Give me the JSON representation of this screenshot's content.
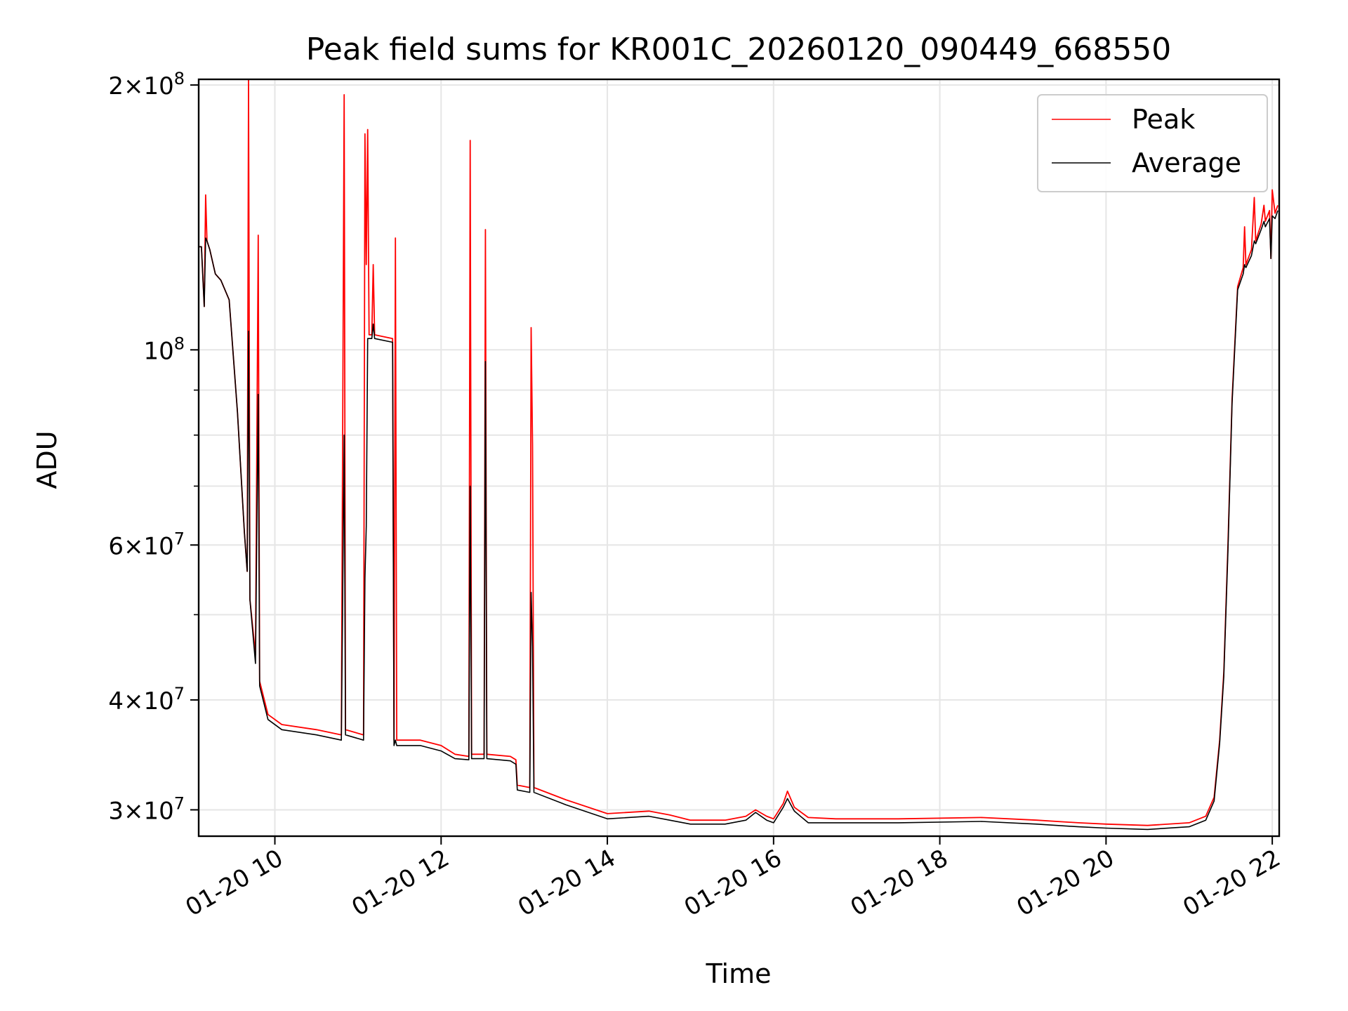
{
  "chart_data": {
    "type": "line",
    "title": "Peak field sums for KR001C_20260120_090449_668550",
    "xlabel": "Time",
    "ylabel": "ADU",
    "yscale": "log",
    "ylim": [
      28000000,
      203000000
    ],
    "xlim": [
      "2026-01-20 09:05",
      "2026-01-20 22:05"
    ],
    "grid": true,
    "legend_position": "top-right",
    "x_ticks": [
      {
        "value": "2026-01-20 10:00",
        "label": "01-20 10"
      },
      {
        "value": "2026-01-20 12:00",
        "label": "01-20 12"
      },
      {
        "value": "2026-01-20 14:00",
        "label": "01-20 14"
      },
      {
        "value": "2026-01-20 16:00",
        "label": "01-20 16"
      },
      {
        "value": "2026-01-20 18:00",
        "label": "01-20 18"
      },
      {
        "value": "2026-01-20 20:00",
        "label": "01-20 20"
      },
      {
        "value": "2026-01-20 22:00",
        "label": "01-20 22"
      }
    ],
    "y_ticks": [
      {
        "value": 30000000,
        "mantissa": "3",
        "exponent": "7"
      },
      {
        "value": 40000000,
        "mantissa": "4",
        "exponent": "7"
      },
      {
        "value": 60000000,
        "mantissa": "6",
        "exponent": "7"
      },
      {
        "value": 100000000,
        "mantissa": "",
        "exponent": "8"
      },
      {
        "value": 200000000,
        "mantissa": "2",
        "exponent": "8"
      }
    ],
    "series": [
      {
        "name": "Peak",
        "color": "#ff0000",
        "points": [
          [
            "2026-01-20 09:05",
            131000000
          ],
          [
            "2026-01-20 09:07",
            131000000
          ],
          [
            "2026-01-20 09:09",
            112000000
          ],
          [
            "2026-01-20 09:10",
            150000000
          ],
          [
            "2026-01-20 09:11",
            133000000
          ],
          [
            "2026-01-20 09:13",
            130000000
          ],
          [
            "2026-01-20 09:17",
            122000000
          ],
          [
            "2026-01-20 09:21",
            120000000
          ],
          [
            "2026-01-20 09:27",
            114000000
          ],
          [
            "2026-01-20 09:33",
            85000000
          ],
          [
            "2026-01-20 09:38",
            62000000
          ],
          [
            "2026-01-20 09:40",
            56000000
          ],
          [
            "2026-01-20 09:41",
            203000000
          ],
          [
            "2026-01-20 09:42",
            52000000
          ],
          [
            "2026-01-20 09:46",
            45000000
          ],
          [
            "2026-01-20 09:48",
            135000000
          ],
          [
            "2026-01-20 09:49",
            42000000
          ],
          [
            "2026-01-20 09:55",
            38500000
          ],
          [
            "2026-01-20 10:05",
            37500000
          ],
          [
            "2026-01-20 10:30",
            37000000
          ],
          [
            "2026-01-20 10:48",
            36500000
          ],
          [
            "2026-01-20 10:50",
            195000000
          ],
          [
            "2026-01-20 10:51",
            37000000
          ],
          [
            "2026-01-20 11:04",
            36500000
          ],
          [
            "2026-01-20 11:05",
            176000000
          ],
          [
            "2026-01-20 11:06",
            125000000
          ],
          [
            "2026-01-20 11:07",
            178000000
          ],
          [
            "2026-01-20 11:08",
            104000000
          ],
          [
            "2026-01-20 11:10",
            104000000
          ],
          [
            "2026-01-20 11:11",
            125000000
          ],
          [
            "2026-01-20 11:12",
            104000000
          ],
          [
            "2026-01-20 11:25",
            103000000
          ],
          [
            "2026-01-20 11:26",
            36000000
          ],
          [
            "2026-01-20 11:27",
            134000000
          ],
          [
            "2026-01-20 11:28",
            36000000
          ],
          [
            "2026-01-20 11:45",
            36000000
          ],
          [
            "2026-01-20 12:00",
            35500000
          ],
          [
            "2026-01-20 12:10",
            34700000
          ],
          [
            "2026-01-20 12:20",
            34500000
          ],
          [
            "2026-01-20 12:21",
            173000000
          ],
          [
            "2026-01-20 12:22",
            34700000
          ],
          [
            "2026-01-20 12:31",
            34700000
          ],
          [
            "2026-01-20 12:32",
            137000000
          ],
          [
            "2026-01-20 12:33",
            34700000
          ],
          [
            "2026-01-20 12:50",
            34500000
          ],
          [
            "2026-01-20 12:54",
            34200000
          ],
          [
            "2026-01-20 12:55",
            32000000
          ],
          [
            "2026-01-20 13:04",
            31800000
          ],
          [
            "2026-01-20 13:05",
            106000000
          ],
          [
            "2026-01-20 13:06",
            78000000
          ],
          [
            "2026-01-20 13:07",
            31800000
          ],
          [
            "2026-01-20 13:30",
            30800000
          ],
          [
            "2026-01-20 14:00",
            29700000
          ],
          [
            "2026-01-20 14:30",
            29900000
          ],
          [
            "2026-01-20 14:45",
            29600000
          ],
          [
            "2026-01-20 15:00",
            29200000
          ],
          [
            "2026-01-20 15:25",
            29200000
          ],
          [
            "2026-01-20 15:40",
            29500000
          ],
          [
            "2026-01-20 15:47",
            30000000
          ],
          [
            "2026-01-20 15:55",
            29500000
          ],
          [
            "2026-01-20 16:00",
            29300000
          ],
          [
            "2026-01-20 16:07",
            30500000
          ],
          [
            "2026-01-20 16:10",
            31500000
          ],
          [
            "2026-01-20 16:15",
            30200000
          ],
          [
            "2026-01-20 16:25",
            29400000
          ],
          [
            "2026-01-20 16:45",
            29300000
          ],
          [
            "2026-01-20 17:30",
            29300000
          ],
          [
            "2026-01-20 18:30",
            29400000
          ],
          [
            "2026-01-20 19:10",
            29200000
          ],
          [
            "2026-01-20 19:40",
            29000000
          ],
          [
            "2026-01-20 20:00",
            28900000
          ],
          [
            "2026-01-20 20:30",
            28800000
          ],
          [
            "2026-01-20 21:00",
            29000000
          ],
          [
            "2026-01-20 21:12",
            29500000
          ],
          [
            "2026-01-20 21:18",
            31000000
          ],
          [
            "2026-01-20 21:22",
            36000000
          ],
          [
            "2026-01-20 21:25",
            43000000
          ],
          [
            "2026-01-20 21:28",
            60000000
          ],
          [
            "2026-01-20 21:31",
            88000000
          ],
          [
            "2026-01-20 21:35",
            118000000
          ],
          [
            "2026-01-20 21:39",
            124000000
          ],
          [
            "2026-01-20 21:40",
            138000000
          ],
          [
            "2026-01-20 21:41",
            125000000
          ],
          [
            "2026-01-20 21:45",
            130000000
          ],
          [
            "2026-01-20 21:47",
            149000000
          ],
          [
            "2026-01-20 21:48",
            133000000
          ],
          [
            "2026-01-20 21:52",
            139000000
          ],
          [
            "2026-01-20 21:54",
            146000000
          ],
          [
            "2026-01-20 21:55",
            140000000
          ],
          [
            "2026-01-20 21:58",
            144000000
          ],
          [
            "2026-01-20 21:59",
            127000000
          ],
          [
            "2026-01-20 22:00",
            152000000
          ],
          [
            "2026-01-20 22:02",
            143000000
          ],
          [
            "2026-01-20 22:04",
            146000000
          ]
        ]
      },
      {
        "name": "Average",
        "color": "#000000",
        "points": [
          [
            "2026-01-20 09:05",
            131000000
          ],
          [
            "2026-01-20 09:07",
            131000000
          ],
          [
            "2026-01-20 09:09",
            112000000
          ],
          [
            "2026-01-20 09:10",
            134000000
          ],
          [
            "2026-01-20 09:11",
            133000000
          ],
          [
            "2026-01-20 09:13",
            130000000
          ],
          [
            "2026-01-20 09:17",
            122000000
          ],
          [
            "2026-01-20 09:21",
            120000000
          ],
          [
            "2026-01-20 09:27",
            114000000
          ],
          [
            "2026-01-20 09:33",
            85000000
          ],
          [
            "2026-01-20 09:38",
            62000000
          ],
          [
            "2026-01-20 09:40",
            56000000
          ],
          [
            "2026-01-20 09:41",
            105000000
          ],
          [
            "2026-01-20 09:42",
            52000000
          ],
          [
            "2026-01-20 09:46",
            44000000
          ],
          [
            "2026-01-20 09:48",
            89000000
          ],
          [
            "2026-01-20 09:49",
            41500000
          ],
          [
            "2026-01-20 09:55",
            38000000
          ],
          [
            "2026-01-20 10:05",
            37000000
          ],
          [
            "2026-01-20 10:30",
            36500000
          ],
          [
            "2026-01-20 10:48",
            36000000
          ],
          [
            "2026-01-20 10:50",
            80000000
          ],
          [
            "2026-01-20 10:51",
            36500000
          ],
          [
            "2026-01-20 11:04",
            36000000
          ],
          [
            "2026-01-20 11:05",
            55000000
          ],
          [
            "2026-01-20 11:06",
            63000000
          ],
          [
            "2026-01-20 11:07",
            103000000
          ],
          [
            "2026-01-20 11:08",
            103000000
          ],
          [
            "2026-01-20 11:10",
            103000000
          ],
          [
            "2026-01-20 11:11",
            107000000
          ],
          [
            "2026-01-20 11:12",
            103000000
          ],
          [
            "2026-01-20 11:25",
            102000000
          ],
          [
            "2026-01-20 11:26",
            35500000
          ],
          [
            "2026-01-20 11:27",
            36000000
          ],
          [
            "2026-01-20 11:28",
            35500000
          ],
          [
            "2026-01-20 11:45",
            35500000
          ],
          [
            "2026-01-20 12:00",
            35000000
          ],
          [
            "2026-01-20 12:10",
            34300000
          ],
          [
            "2026-01-20 12:20",
            34200000
          ],
          [
            "2026-01-20 12:21",
            70000000
          ],
          [
            "2026-01-20 12:22",
            34300000
          ],
          [
            "2026-01-20 12:31",
            34300000
          ],
          [
            "2026-01-20 12:32",
            97000000
          ],
          [
            "2026-01-20 12:33",
            34300000
          ],
          [
            "2026-01-20 12:50",
            34100000
          ],
          [
            "2026-01-20 12:54",
            33800000
          ],
          [
            "2026-01-20 12:55",
            31600000
          ],
          [
            "2026-01-20 13:04",
            31400000
          ],
          [
            "2026-01-20 13:05",
            53000000
          ],
          [
            "2026-01-20 13:06",
            46000000
          ],
          [
            "2026-01-20 13:07",
            31400000
          ],
          [
            "2026-01-20 13:30",
            30400000
          ],
          [
            "2026-01-20 14:00",
            29300000
          ],
          [
            "2026-01-20 14:30",
            29500000
          ],
          [
            "2026-01-20 14:45",
            29200000
          ],
          [
            "2026-01-20 15:00",
            28900000
          ],
          [
            "2026-01-20 15:25",
            28900000
          ],
          [
            "2026-01-20 15:40",
            29200000
          ],
          [
            "2026-01-20 15:47",
            29800000
          ],
          [
            "2026-01-20 15:55",
            29200000
          ],
          [
            "2026-01-20 16:00",
            29000000
          ],
          [
            "2026-01-20 16:07",
            30200000
          ],
          [
            "2026-01-20 16:10",
            30900000
          ],
          [
            "2026-01-20 16:15",
            29900000
          ],
          [
            "2026-01-20 16:25",
            29000000
          ],
          [
            "2026-01-20 16:45",
            29000000
          ],
          [
            "2026-01-20 17:30",
            29000000
          ],
          [
            "2026-01-20 18:30",
            29100000
          ],
          [
            "2026-01-20 19:10",
            28900000
          ],
          [
            "2026-01-20 19:40",
            28700000
          ],
          [
            "2026-01-20 20:00",
            28600000
          ],
          [
            "2026-01-20 20:30",
            28500000
          ],
          [
            "2026-01-20 21:00",
            28700000
          ],
          [
            "2026-01-20 21:12",
            29200000
          ],
          [
            "2026-01-20 21:18",
            30700000
          ],
          [
            "2026-01-20 21:22",
            35700000
          ],
          [
            "2026-01-20 21:25",
            42500000
          ],
          [
            "2026-01-20 21:28",
            59000000
          ],
          [
            "2026-01-20 21:31",
            87000000
          ],
          [
            "2026-01-20 21:35",
            117000000
          ],
          [
            "2026-01-20 21:39",
            122000000
          ],
          [
            "2026-01-20 21:40",
            125000000
          ],
          [
            "2026-01-20 21:41",
            124000000
          ],
          [
            "2026-01-20 21:45",
            128000000
          ],
          [
            "2026-01-20 21:47",
            133000000
          ],
          [
            "2026-01-20 21:48",
            132000000
          ],
          [
            "2026-01-20 21:52",
            137000000
          ],
          [
            "2026-01-20 21:54",
            140000000
          ],
          [
            "2026-01-20 21:55",
            138000000
          ],
          [
            "2026-01-20 21:58",
            141000000
          ],
          [
            "2026-01-20 21:59",
            127000000
          ],
          [
            "2026-01-20 22:00",
            142000000
          ],
          [
            "2026-01-20 22:02",
            141000000
          ],
          [
            "2026-01-20 22:04",
            144000000
          ]
        ]
      }
    ]
  }
}
